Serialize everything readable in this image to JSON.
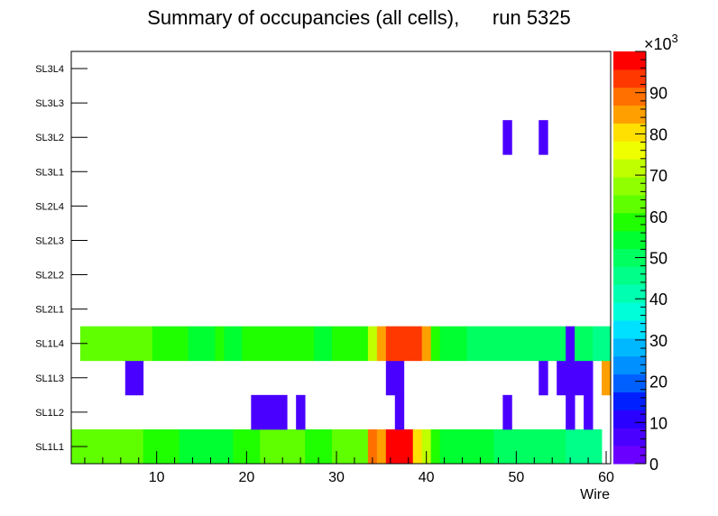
{
  "chart_data": {
    "type": "heatmap",
    "title": "Summary of occupancies (all cells),      run 5325",
    "xlabel": "Wire",
    "ylabel": "",
    "xlim": [
      0.5,
      60.5
    ],
    "x_ticks": [
      10,
      20,
      30,
      40,
      50,
      60
    ],
    "y_categories": [
      "SL1L1",
      "SL1L2",
      "SL1L3",
      "SL1L4",
      "SL2L1",
      "SL2L2",
      "SL2L3",
      "SL2L4",
      "SL3L1",
      "SL3L2",
      "SL3L3",
      "SL3L4"
    ],
    "color_scale": {
      "min": 0,
      "max": 100,
      "ticks": [
        0,
        10,
        20,
        30,
        40,
        50,
        60,
        70,
        80,
        90
      ],
      "multiplier_label": "×10",
      "multiplier_exponent": "3",
      "palette": [
        "#6a00ff",
        "#4a00ff",
        "#2a00ff",
        "#0020ff",
        "#0060ff",
        "#0090ff",
        "#00b8ff",
        "#00e0ff",
        "#00ffd8",
        "#00ffb0",
        "#00ff88",
        "#00ff60",
        "#00ff30",
        "#20ff00",
        "#60ff00",
        "#90ff00",
        "#c0ff00",
        "#f0ff00",
        "#ffe000",
        "#ffa000",
        "#ff7000",
        "#ff3800",
        "#ff0000"
      ]
    },
    "rows": [
      {
        "layer": "SL1L1",
        "values": [
          64,
          64,
          64,
          64,
          62,
          65,
          65,
          65,
          60,
          60,
          57,
          57,
          55,
          55,
          56,
          56,
          56,
          55,
          57,
          57,
          57,
          64,
          64,
          64,
          64,
          64,
          60,
          60,
          60,
          65,
          65,
          65,
          65,
          90,
          85,
          96,
          96,
          96,
          80,
          73,
          58,
          56,
          56,
          56,
          56,
          56,
          56,
          50,
          50,
          50,
          50,
          50,
          50,
          50,
          50,
          47,
          47,
          47,
          47,
          null
        ]
      },
      {
        "layer": "SL1L2",
        "values": [
          null,
          null,
          null,
          null,
          null,
          null,
          null,
          null,
          null,
          null,
          null,
          null,
          null,
          null,
          null,
          null,
          null,
          null,
          null,
          null,
          5,
          5,
          5,
          5,
          null,
          5,
          null,
          null,
          null,
          null,
          null,
          null,
          null,
          null,
          null,
          null,
          5,
          null,
          null,
          null,
          null,
          null,
          null,
          null,
          null,
          null,
          null,
          null,
          5,
          null,
          null,
          null,
          null,
          null,
          null,
          5,
          null,
          5,
          null,
          null
        ]
      },
      {
        "layer": "SL1L3",
        "values": [
          null,
          null,
          null,
          null,
          null,
          null,
          5,
          5,
          null,
          null,
          null,
          null,
          null,
          null,
          null,
          null,
          null,
          null,
          null,
          null,
          null,
          null,
          null,
          null,
          null,
          null,
          null,
          null,
          null,
          null,
          null,
          null,
          null,
          null,
          null,
          5,
          5,
          null,
          null,
          null,
          null,
          null,
          null,
          null,
          null,
          null,
          null,
          null,
          null,
          null,
          null,
          null,
          5,
          null,
          5,
          5,
          5,
          5,
          null,
          84
        ]
      },
      {
        "layer": "SL1L4",
        "values": [
          null,
          64,
          64,
          64,
          62,
          65,
          65,
          65,
          65,
          60,
          60,
          57,
          57,
          55,
          55,
          55,
          57,
          55,
          55,
          57,
          57,
          57,
          57,
          57,
          57,
          57,
          57,
          55,
          55,
          57,
          57,
          57,
          57,
          70,
          83,
          95,
          95,
          95,
          95,
          85,
          58,
          56,
          56,
          56,
          50,
          50,
          50,
          50,
          48,
          48,
          48,
          48,
          48,
          48,
          48,
          6,
          50,
          50,
          44,
          44
        ]
      },
      {
        "layer": "SL2L1",
        "values": []
      },
      {
        "layer": "SL2L2",
        "values": []
      },
      {
        "layer": "SL2L3",
        "values": []
      },
      {
        "layer": "SL2L4",
        "values": []
      },
      {
        "layer": "SL3L1",
        "values": []
      },
      {
        "layer": "SL3L2",
        "values": [
          null,
          null,
          null,
          null,
          null,
          null,
          null,
          null,
          null,
          null,
          null,
          null,
          null,
          null,
          null,
          null,
          null,
          null,
          null,
          null,
          null,
          null,
          null,
          null,
          null,
          null,
          null,
          null,
          null,
          null,
          null,
          null,
          null,
          null,
          null,
          null,
          null,
          null,
          null,
          null,
          null,
          null,
          null,
          null,
          null,
          null,
          null,
          null,
          5,
          null,
          null,
          null,
          5,
          null,
          null,
          null,
          null,
          null,
          null,
          null
        ]
      },
      {
        "layer": "SL3L3",
        "values": []
      },
      {
        "layer": "SL3L4",
        "values": []
      }
    ]
  }
}
